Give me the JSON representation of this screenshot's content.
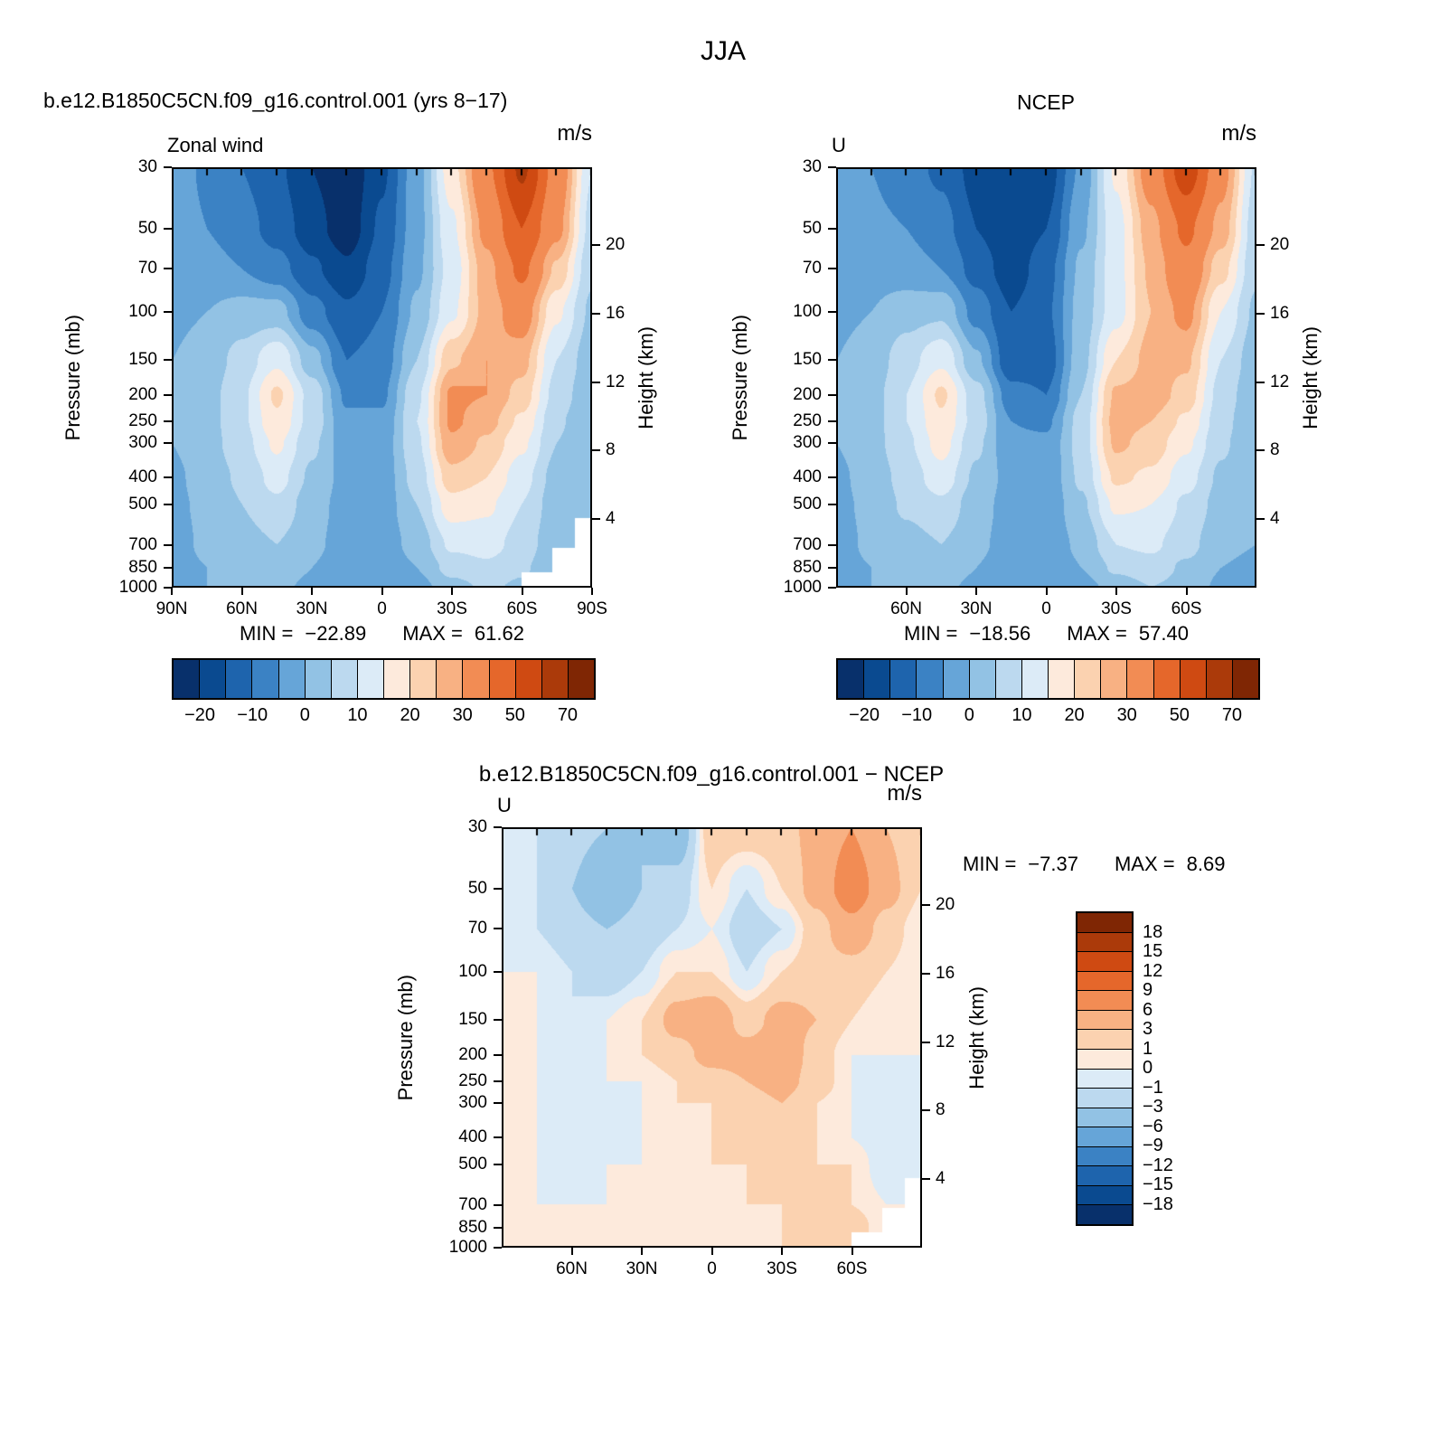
{
  "figure_title": "JJA",
  "panels": {
    "model": {
      "title": "b.e12.B1850C5CN.f09_g16.control.001 (yrs 8−17)",
      "field_label": "Zonal wind",
      "units": "m/s",
      "pressure_axis": "Pressure (mb)",
      "height_axis": "Height (km)",
      "stats": {
        "min_label": "MIN =",
        "min_value": "−22.89",
        "max_label": "MAX =",
        "max_value": "61.62"
      }
    },
    "ncep": {
      "title": "NCEP",
      "field_label": "U",
      "units": "m/s",
      "pressure_axis": "Pressure (mb)",
      "height_axis": "Height (km)",
      "stats": {
        "min_label": "MIN =",
        "min_value": "−18.56",
        "max_label": "MAX =",
        "max_value": "57.40"
      }
    },
    "diff": {
      "title": "b.e12.B1850C5CN.f09_g16.control.001 − NCEP",
      "field_label": "U",
      "units": "m/s",
      "pressure_axis": "Pressure (mb)",
      "height_axis": "Height (km)",
      "stats": {
        "min_label": "MIN =",
        "min_value": "−7.37",
        "max_label": "MAX =",
        "max_value": "8.69"
      }
    }
  },
  "axes": {
    "pressure_ticks": [
      30,
      50,
      70,
      100,
      150,
      200,
      250,
      300,
      400,
      500,
      700,
      850,
      1000
    ],
    "height_ticks": [
      20,
      16,
      12,
      8,
      4
    ],
    "lat_ticks_full": [
      {
        "label": "90N",
        "lat": 90
      },
      {
        "label": "60N",
        "lat": 60
      },
      {
        "label": "30N",
        "lat": 30
      },
      {
        "label": "0",
        "lat": 0
      },
      {
        "label": "30S",
        "lat": -30
      },
      {
        "label": "60S",
        "lat": -60
      },
      {
        "label": "90S",
        "lat": -90
      }
    ],
    "lat_ticks_inner": [
      {
        "label": "60N",
        "lat": 60
      },
      {
        "label": "30N",
        "lat": 30
      },
      {
        "label": "0",
        "lat": 0
      },
      {
        "label": "30S",
        "lat": -30
      },
      {
        "label": "60S",
        "lat": -60
      }
    ]
  },
  "colorbar_main": {
    "tick_labels": [
      "−20",
      "−10",
      "0",
      "10",
      "20",
      "30",
      "50",
      "70"
    ]
  },
  "colorbar_diff": {
    "tick_labels": [
      "18",
      "15",
      "12",
      "9",
      "6",
      "3",
      "1",
      "0",
      "−1",
      "−3",
      "−6",
      "−9",
      "−12",
      "−15",
      "−18"
    ]
  },
  "colormaps": {
    "main": {
      "edges": [
        -25,
        -20,
        -15,
        -10,
        -5,
        0,
        5,
        10,
        15,
        20,
        25,
        30,
        40,
        50,
        60,
        70,
        80
      ],
      "colors": [
        "#08306b",
        "#0a4a90",
        "#1e64ad",
        "#3b82c4",
        "#66a5d8",
        "#92c2e4",
        "#bcd9ef",
        "#dcebf7",
        "#fdeadc",
        "#fbd2b0",
        "#f8b183",
        "#f28c54",
        "#e5672b",
        "#cf4a12",
        "#ab3a0a",
        "#7f2604"
      ]
    },
    "diff": {
      "edges": [
        -21,
        -18,
        -15,
        -12,
        -9,
        -6,
        -3,
        -1,
        0,
        1,
        3,
        6,
        9,
        12,
        15,
        18,
        21
      ],
      "colors": [
        "#08306b",
        "#0a4a90",
        "#1e64ad",
        "#3b82c4",
        "#66a5d8",
        "#92c2e4",
        "#bcd9ef",
        "#dcebf7",
        "#fdeadc",
        "#fbd2b0",
        "#f8b183",
        "#f28c54",
        "#e5672b",
        "#cf4a12",
        "#ab3a0a",
        "#7f2604"
      ]
    }
  },
  "chart_data": [
    {
      "name": "model",
      "type": "heatmap",
      "title": "Zonal wind, b.e12.B1850C5CN.f09_g16.control.001 (yrs 8−17), JJA",
      "units": "m/s",
      "xlabel": "latitude (90N to 90S)",
      "ylabel": "pressure (mb, log axis 30 to 1000)",
      "colormap": "main",
      "min": -22.89,
      "max": 61.62,
      "lats": [
        90,
        75,
        60,
        45,
        30,
        15,
        0,
        -15,
        -30,
        -45,
        -60,
        -75,
        -90
      ],
      "levels_mb": [
        30,
        50,
        70,
        100,
        150,
        200,
        250,
        300,
        400,
        500,
        700,
        850,
        1000
      ],
      "values": [
        [
          -2,
          -6,
          -10,
          -14,
          -20,
          -24,
          -16,
          -2,
          18,
          38,
          62,
          36,
          10
        ],
        [
          -2,
          -5,
          -8,
          -12,
          -18,
          -23,
          -14,
          -2,
          14,
          32,
          50,
          32,
          8
        ],
        [
          -1,
          -3,
          -5,
          -8,
          -14,
          -19,
          -12,
          -1,
          12,
          28,
          42,
          24,
          6
        ],
        [
          -1,
          0,
          2,
          2,
          -8,
          -14,
          -10,
          1,
          14,
          27,
          34,
          16,
          4
        ],
        [
          0,
          2,
          7,
          14,
          2,
          -10,
          -8,
          5,
          24,
          30,
          27,
          10,
          2
        ],
        [
          0,
          3,
          9,
          21,
          8,
          -6,
          -6,
          9,
          31,
          30,
          23,
          8,
          1
        ],
        [
          0,
          3,
          9,
          19,
          8,
          -4,
          -4,
          10,
          31,
          27,
          19,
          6,
          0
        ],
        [
          0,
          3,
          8,
          16,
          6,
          -3,
          -3,
          9,
          29,
          24,
          16,
          5,
          0
        ],
        [
          -1,
          2,
          6,
          12,
          4,
          -2,
          -3,
          7,
          23,
          20,
          12,
          3,
          0
        ],
        [
          -1,
          1,
          5,
          9,
          2,
          -2,
          -3,
          5,
          18,
          16,
          10,
          2,
          0
        ],
        [
          -2,
          1,
          3,
          5,
          1,
          -2,
          -3,
          2,
          11,
          12,
          8,
          1,
          0
        ],
        [
          -2,
          0,
          2,
          3,
          0,
          -3,
          -4,
          0,
          7,
          9,
          6,
          0,
          -1
        ],
        [
          -1,
          0,
          1,
          1,
          -1,
          -4,
          -5,
          -2,
          3,
          6,
          4,
          -1,
          -2
        ]
      ]
    },
    {
      "name": "ncep",
      "type": "heatmap",
      "title": "U, NCEP, JJA",
      "units": "m/s",
      "xlabel": "latitude (90N to 90S)",
      "ylabel": "pressure (mb, log axis 30 to 1000)",
      "colormap": "main",
      "min": -18.56,
      "max": 57.4,
      "lats": [
        90,
        75,
        60,
        45,
        30,
        15,
        0,
        -15,
        -30,
        -45,
        -60,
        -75,
        -90
      ],
      "levels_mb": [
        30,
        50,
        70,
        100,
        150,
        200,
        250,
        300,
        400,
        500,
        700,
        850,
        1000
      ],
      "values": [
        [
          -2,
          -5,
          -8,
          -11,
          -17,
          -19,
          -18,
          -4,
          16,
          34,
          56,
          33,
          9
        ],
        [
          -2,
          -4,
          -5,
          -8,
          -15,
          -19,
          -15,
          -1,
          13,
          28,
          42,
          28,
          7
        ],
        [
          -1,
          -2,
          -3,
          -5,
          -12,
          -18,
          -12,
          1,
          13,
          26,
          37,
          22,
          6
        ],
        [
          -1,
          0,
          3,
          4,
          -7,
          -15,
          -11,
          2,
          13,
          25,
          32,
          15,
          4
        ],
        [
          0,
          2,
          8,
          14,
          1,
          -14,
          -13,
          3,
          20,
          27,
          26,
          10,
          2
        ],
        [
          0,
          3,
          10,
          21,
          7,
          -8,
          -10,
          5,
          26,
          28,
          23,
          8,
          1
        ],
        [
          0,
          3,
          10,
          19,
          8,
          -5,
          -6,
          7,
          27,
          25,
          19,
          7,
          0
        ],
        [
          0,
          3,
          9,
          17,
          6,
          -4,
          -4,
          7,
          26,
          23,
          16,
          6,
          0
        ],
        [
          -1,
          2,
          7,
          13,
          4,
          -2,
          -4,
          6,
          21,
          19,
          12,
          4,
          0
        ],
        [
          -1,
          1,
          6,
          9,
          2,
          -2,
          -4,
          4,
          16,
          15,
          9,
          3,
          0
        ],
        [
          -2,
          1,
          3,
          5,
          1,
          -2,
          -3,
          1,
          10,
          11,
          7,
          1,
          0
        ],
        [
          -2,
          0,
          2,
          3,
          0,
          -3,
          -4,
          0,
          6,
          8,
          4,
          0,
          -1
        ],
        [
          -1,
          0,
          1,
          1,
          -1,
          -4,
          -5,
          -2,
          2,
          5,
          3,
          -1,
          -2
        ]
      ]
    },
    {
      "name": "diff",
      "type": "heatmap",
      "title": "b.e12.B1850C5CN.f09_g16.control.001 − NCEP, JJA",
      "units": "m/s",
      "xlabel": "latitude (90N to 90S)",
      "ylabel": "pressure (mb, log axis 30 to 1000)",
      "colormap": "diff",
      "min": -7.37,
      "max": 8.69,
      "lats": [
        90,
        75,
        60,
        45,
        30,
        15,
        0,
        -15,
        -30,
        -45,
        -60,
        -75,
        -90
      ],
      "levels_mb": [
        30,
        50,
        70,
        100,
        150,
        200,
        250,
        300,
        400,
        500,
        700,
        850,
        1000
      ],
      "values": [
        [
          0,
          -1,
          -2,
          -3,
          -3,
          -5,
          2,
          2,
          2,
          4,
          6,
          3,
          1
        ],
        [
          0,
          -1,
          -3,
          -6,
          -3,
          -2,
          1,
          -1,
          1,
          4,
          8,
          4,
          1
        ],
        [
          0,
          -1,
          -2,
          -3,
          -2,
          -1,
          0,
          -2,
          -1,
          2,
          5,
          2,
          0
        ],
        [
          0,
          0,
          -1,
          -2,
          -1,
          1,
          1,
          -1,
          1,
          2,
          2,
          1,
          0
        ],
        [
          0,
          0,
          -1,
          0,
          1,
          4,
          5,
          2,
          4,
          3,
          1,
          0,
          0
        ],
        [
          0,
          0,
          -1,
          0,
          1,
          2,
          4,
          4,
          5,
          2,
          0,
          0,
          0
        ],
        [
          0,
          0,
          -1,
          0,
          0,
          1,
          2,
          3,
          4,
          2,
          0,
          -1,
          0
        ],
        [
          0,
          0,
          -1,
          -1,
          0,
          1,
          1,
          2,
          3,
          1,
          0,
          -1,
          0
        ],
        [
          0,
          0,
          -1,
          -1,
          0,
          0,
          1,
          1,
          2,
          1,
          0,
          -1,
          0
        ],
        [
          0,
          0,
          -1,
          0,
          0,
          0,
          1,
          1,
          2,
          1,
          1,
          -1,
          0
        ],
        [
          0,
          0,
          0,
          0,
          0,
          0,
          0,
          1,
          1,
          1,
          1,
          0,
          0
        ],
        [
          0,
          0,
          0,
          0,
          0,
          0,
          0,
          0,
          1,
          1,
          2,
          0,
          0
        ],
        [
          0,
          0,
          0,
          0,
          0,
          0,
          0,
          0,
          1,
          1,
          1,
          0,
          0
        ]
      ]
    }
  ]
}
